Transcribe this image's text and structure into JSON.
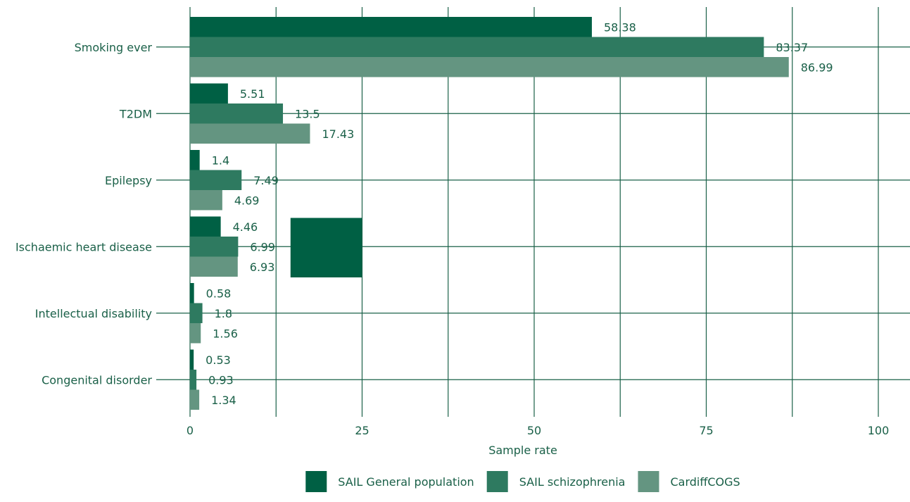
{
  "chart_data": {
    "type": "bar",
    "orientation": "horizontal",
    "categories": [
      "Smoking ever",
      "T2DM",
      "Epilepsy",
      "Ischaemic heart disease",
      "Intellectual disability",
      "Congenital disorder"
    ],
    "series": [
      {
        "name": "SAIL General population",
        "color": "#006044",
        "values": [
          58.38,
          5.51,
          1.4,
          4.46,
          0.58,
          0.53
        ],
        "labels": [
          "58.38",
          "5.51",
          "1.4",
          "4.46",
          "0.58",
          "0.53"
        ]
      },
      {
        "name": "SAIL schizophrenia",
        "color": "#2e7a60",
        "values": [
          83.37,
          13.5,
          7.49,
          6.99,
          1.8,
          0.93
        ],
        "labels": [
          "83.37",
          "13.5",
          "7.49",
          "6.99",
          "1.8",
          "0.93"
        ]
      },
      {
        "name": "CardiffCOGS",
        "color": "#649581",
        "values": [
          86.99,
          17.43,
          4.69,
          6.93,
          1.56,
          1.34
        ],
        "labels": [
          "86.99",
          "17.43",
          "4.69",
          "6.93",
          "1.56",
          "1.34"
        ]
      }
    ],
    "xlabel": "Sample rate",
    "xlim": [
      0,
      100
    ],
    "xticks": [
      0,
      25,
      50,
      75,
      100
    ],
    "xtick_labels": [
      "0",
      "25",
      "50",
      "75",
      "100"
    ],
    "gridline_values": [
      0,
      12.5,
      25,
      37.5,
      50,
      62.5,
      75,
      87.5,
      100
    ],
    "grid": true,
    "grid_color": "#1a6048",
    "legend_position": "bottom",
    "annotation_box": {
      "color": "#006044",
      "x_range": [
        14.6,
        25
      ],
      "category": "Ischaemic heart disease"
    }
  }
}
